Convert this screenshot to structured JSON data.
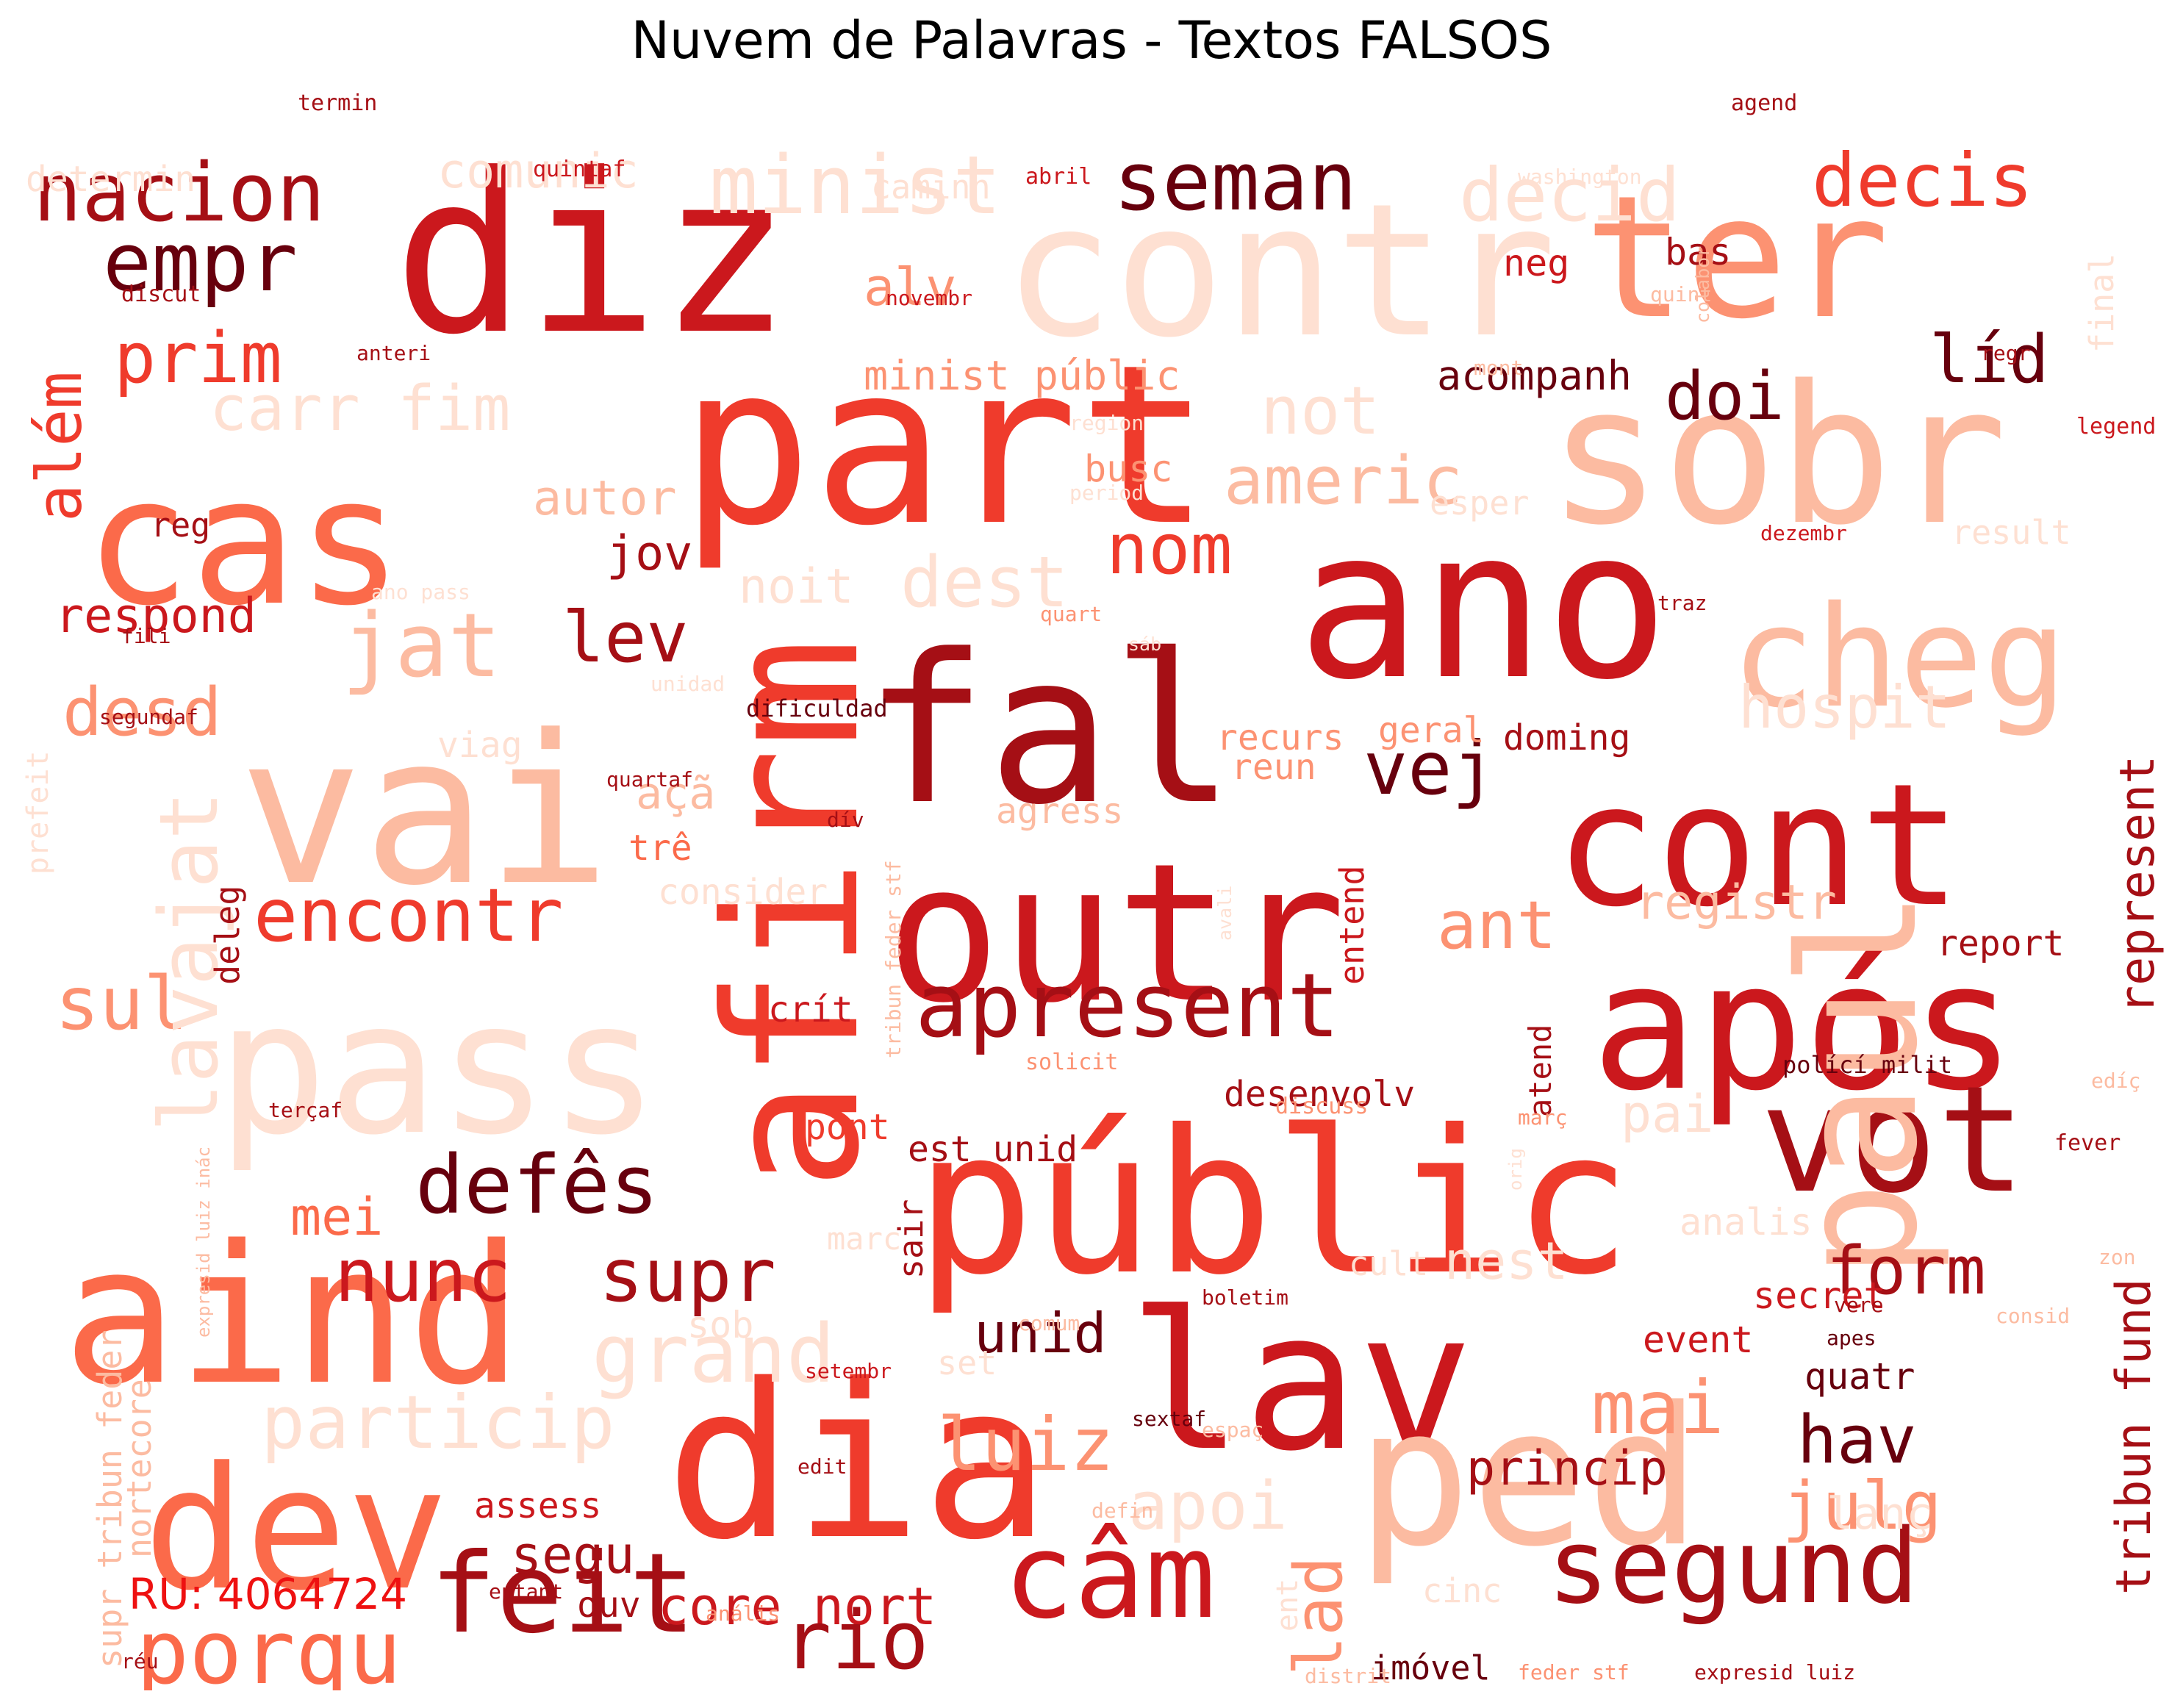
{
  "title": "Nuvem de Palavras - Textos FALSOS",
  "footer_label": "RU: 4064724",
  "colormap": "Reds",
  "palette": [
    "#fee0d2",
    "#fcbba1",
    "#fc9272",
    "#fb6a4a",
    "#ef3b2c",
    "#cb181d",
    "#a50f15",
    "#67000d"
  ],
  "words": [
    {
      "text": "diz",
      "color": "#cb181d"
    },
    {
      "text": "contr",
      "color": "#fee0d2"
    },
    {
      "text": "ter",
      "color": "#fc9272"
    },
    {
      "text": "sobr",
      "color": "#fcbba1"
    },
    {
      "text": "part",
      "color": "#ef3b2c"
    },
    {
      "text": "cas",
      "color": "#fb6a4a"
    },
    {
      "text": "ano",
      "color": "#cb181d"
    },
    {
      "text": "cheg",
      "color": "#fcbba1"
    },
    {
      "text": "fal",
      "color": "#a50f15"
    },
    {
      "text": "vai",
      "color": "#fcbba1"
    },
    {
      "text": "afirm",
      "color": "#ef3b2c"
    },
    {
      "text": "cont",
      "color": "#cb181d"
    },
    {
      "text": "outr",
      "color": "#cb181d"
    },
    {
      "text": "após",
      "color": "#cb181d"
    },
    {
      "text": "pass",
      "color": "#fee0d2"
    },
    {
      "text": "públic",
      "color": "#ef3b2c"
    },
    {
      "text": "vot",
      "color": "#a50f15"
    },
    {
      "text": "aind",
      "color": "#fb6a4a"
    },
    {
      "text": "lav",
      "color": "#cb181d"
    },
    {
      "text": "dia",
      "color": "#ef3b2c"
    },
    {
      "text": "dev",
      "color": "#fb6a4a"
    },
    {
      "text": "ped",
      "color": "#fcbba1"
    },
    {
      "text": "paul",
      "color": "#fcbba1"
    },
    {
      "text": "câm",
      "color": "#cb181d"
    },
    {
      "text": "feit",
      "color": "#a50f15"
    },
    {
      "text": "porqu",
      "color": "#fb6a4a"
    },
    {
      "text": "segund",
      "color": "#a50f15"
    },
    {
      "text": "nacion",
      "color": "#a50f15"
    },
    {
      "text": "empr",
      "color": "#67000d"
    },
    {
      "text": "minist",
      "color": "#fee0d2"
    },
    {
      "text": "seman",
      "color": "#67000d"
    },
    {
      "text": "decid",
      "color": "#fee0d2"
    },
    {
      "text": "decis",
      "color": "#ef3b2c"
    },
    {
      "text": "comunic",
      "color": "#fee0d2"
    },
    {
      "text": "determin",
      "color": "#fee0d2"
    },
    {
      "text": "prim",
      "color": "#ef3b2c"
    },
    {
      "text": "carr fim",
      "color": "#fee0d2"
    },
    {
      "text": "além",
      "color": "#ef3b2c"
    },
    {
      "text": "not",
      "color": "#fee0d2"
    },
    {
      "text": "americ",
      "color": "#fcbba1"
    },
    {
      "text": "doi",
      "color": "#67000d"
    },
    {
      "text": "líd",
      "color": "#67000d"
    },
    {
      "text": "alv",
      "color": "#fc9272"
    },
    {
      "text": "minist públic",
      "color": "#fc9272"
    },
    {
      "text": "acompanh",
      "color": "#67000d"
    },
    {
      "text": "nom",
      "color": "#ef3b2c"
    },
    {
      "text": "autor",
      "color": "#fcbba1"
    },
    {
      "text": "jov",
      "color": "#a50f15"
    },
    {
      "text": "lev",
      "color": "#a50f15"
    },
    {
      "text": "jat",
      "color": "#fcbba1"
    },
    {
      "text": "desd",
      "color": "#fc9272"
    },
    {
      "text": "respond",
      "color": "#cb181d"
    },
    {
      "text": "dest",
      "color": "#fee0d2"
    },
    {
      "text": "hospit",
      "color": "#fee0d2"
    },
    {
      "text": "vej",
      "color": "#67000d"
    },
    {
      "text": "encontr",
      "color": "#ef3b2c"
    },
    {
      "text": "ant",
      "color": "#fc9272"
    },
    {
      "text": "apresent",
      "color": "#a50f15"
    },
    {
      "text": "registr",
      "color": "#fcbba1"
    },
    {
      "text": "sul",
      "color": "#fc9272"
    },
    {
      "text": "lavajat",
      "color": "#fee0d2"
    },
    {
      "text": "defês",
      "color": "#67000d"
    },
    {
      "text": "nunc",
      "color": "#cb181d"
    },
    {
      "text": "supr",
      "color": "#a50f15"
    },
    {
      "text": "grand",
      "color": "#fee0d2"
    },
    {
      "text": "form",
      "color": "#a50f15"
    },
    {
      "text": "unid",
      "color": "#67000d"
    },
    {
      "text": "luiz",
      "color": "#fc9272"
    },
    {
      "text": "mai",
      "color": "#fc9272"
    },
    {
      "text": "hav",
      "color": "#67000d"
    },
    {
      "text": "particip",
      "color": "#fee0d2"
    },
    {
      "text": "princip",
      "color": "#a50f15"
    },
    {
      "text": "apoi",
      "color": "#fee0d2"
    },
    {
      "text": "julg",
      "color": "#fc9272"
    },
    {
      "text": "segu",
      "color": "#a50f15"
    },
    {
      "text": "core nort",
      "color": "#cb181d"
    },
    {
      "text": "rio",
      "color": "#a50f15"
    },
    {
      "text": "lad",
      "color": "#fc9272"
    },
    {
      "text": "represent",
      "color": "#a50f15"
    },
    {
      "text": "tribun fund",
      "color": "#a50f15"
    },
    {
      "text": "pont",
      "color": "#ef3b2c"
    },
    {
      "text": "est unid",
      "color": "#a50f15"
    },
    {
      "text": "desenvolv",
      "color": "#a50f15"
    },
    {
      "text": "report",
      "color": "#a50f15"
    },
    {
      "text": "recurs",
      "color": "#fc9272"
    },
    {
      "text": "geral",
      "color": "#fc9272"
    },
    {
      "text": "doming",
      "color": "#a50f15"
    },
    {
      "text": "reun",
      "color": "#fc9272"
    },
    {
      "text": "açã",
      "color": "#fcbba1"
    },
    {
      "text": "trê",
      "color": "#fb6a4a"
    },
    {
      "text": "crít",
      "color": "#cb181d"
    },
    {
      "text": "mei",
      "color": "#fb6a4a"
    },
    {
      "text": "sair",
      "color": "#a50f15"
    },
    {
      "text": "secret",
      "color": "#cb181d"
    },
    {
      "text": "event",
      "color": "#cb181d"
    },
    {
      "text": "quatr",
      "color": "#67000d"
    },
    {
      "text": "assess",
      "color": "#cb181d"
    },
    {
      "text": "ouv",
      "color": "#a50f15"
    },
    {
      "text": "imóvel",
      "color": "#67000d"
    },
    {
      "text": "bas",
      "color": "#a50f15"
    },
    {
      "text": "neg",
      "color": "#cb181d"
    },
    {
      "text": "busc",
      "color": "#fc9272"
    },
    {
      "text": "pai",
      "color": "#fee0d2"
    },
    {
      "text": "analis",
      "color": "#fee0d2"
    },
    {
      "text": "entend",
      "color": "#cb181d"
    },
    {
      "text": "deleg",
      "color": "#a50f15"
    },
    {
      "text": "atend",
      "color": "#a50f15"
    },
    {
      "text": "agress",
      "color": "#fcbba1"
    },
    {
      "text": "consider",
      "color": "#fee0d2"
    },
    {
      "text": "viag",
      "color": "#fee0d2"
    },
    {
      "text": "reg",
      "color": "#a50f15"
    },
    {
      "text": "noit",
      "color": "#fee0d2"
    },
    {
      "text": "esper",
      "color": "#fee0d2"
    },
    {
      "text": "result",
      "color": "#fee0d2"
    },
    {
      "text": "final",
      "color": "#fee0d2"
    },
    {
      "text": "nest",
      "color": "#fee0d2"
    },
    {
      "text": "cult",
      "color": "#fee0d2"
    },
    {
      "text": "lanç",
      "color": "#fee0d2"
    },
    {
      "text": "sob",
      "color": "#fee0d2"
    },
    {
      "text": "set",
      "color": "#fee0d2"
    },
    {
      "text": "marc",
      "color": "#fee0d2"
    },
    {
      "text": "cinc",
      "color": "#fee0d2"
    },
    {
      "text": "ent",
      "color": "#fee0d2"
    },
    {
      "text": "caminh",
      "color": "#fee0d2"
    },
    {
      "text": "prefeit",
      "color": "#fee0d2"
    },
    {
      "text": "nortecore",
      "color": "#fcbba1"
    },
    {
      "text": "supr tribun feder",
      "color": "#fcbba1"
    },
    {
      "text": "termin",
      "color": "#a50f15"
    },
    {
      "text": "quintaf",
      "color": "#cb181d"
    },
    {
      "text": "abril",
      "color": "#cb181d"
    },
    {
      "text": "agend",
      "color": "#a50f15"
    },
    {
      "text": "washington",
      "color": "#fee0d2"
    },
    {
      "text": "discut",
      "color": "#a50f15"
    },
    {
      "text": "novembr",
      "color": "#cb181d"
    },
    {
      "text": "anteri",
      "color": "#a50f15"
    },
    {
      "text": "quint",
      "color": "#fcbba1"
    },
    {
      "text": "colabor",
      "color": "#fcbba1"
    },
    {
      "text": "regr",
      "color": "#a50f15"
    },
    {
      "text": "mont",
      "color": "#fcbba1"
    },
    {
      "text": "legend",
      "color": "#cb181d"
    },
    {
      "text": "region",
      "color": "#fee0d2"
    },
    {
      "text": "period",
      "color": "#fee0d2"
    },
    {
      "text": "dezembr",
      "color": "#cb181d"
    },
    {
      "text": "ano pass",
      "color": "#fee0d2"
    },
    {
      "text": "quart",
      "color": "#fc9272"
    },
    {
      "text": "traz",
      "color": "#a50f15"
    },
    {
      "text": "fili",
      "color": "#a50f15"
    },
    {
      "text": "sáb",
      "color": "#fee0d2"
    },
    {
      "text": "unidad",
      "color": "#fee0d2"
    },
    {
      "text": "dificuldad",
      "color": "#67000d"
    },
    {
      "text": "segundaf",
      "color": "#a50f15"
    },
    {
      "text": "quartaf",
      "color": "#a50f15"
    },
    {
      "text": "dív",
      "color": "#a50f15"
    },
    {
      "text": "tribun feder stf",
      "color": "#fcbba1"
    },
    {
      "text": "avali",
      "color": "#fee0d2"
    },
    {
      "text": "solicit",
      "color": "#fc9272"
    },
    {
      "text": "discuss",
      "color": "#fc9272"
    },
    {
      "text": "polící milit",
      "color": "#67000d"
    },
    {
      "text": "edíç",
      "color": "#fcbba1"
    },
    {
      "text": "terçaf",
      "color": "#a50f15"
    },
    {
      "text": "expresid luiz inác",
      "color": "#fcbba1"
    },
    {
      "text": "març",
      "color": "#fc9272"
    },
    {
      "text": "fever",
      "color": "#a50f15"
    },
    {
      "text": "orig",
      "color": "#fee0d2"
    },
    {
      "text": "zon",
      "color": "#fcbba1"
    },
    {
      "text": "boletim",
      "color": "#a50f15"
    },
    {
      "text": "comum",
      "color": "#fcbba1"
    },
    {
      "text": "vere",
      "color": "#a50f15"
    },
    {
      "text": "consid",
      "color": "#fcbba1"
    },
    {
      "text": "apes",
      "color": "#67000d"
    },
    {
      "text": "setembr",
      "color": "#cb181d"
    },
    {
      "text": "sextaf",
      "color": "#67000d"
    },
    {
      "text": "espaç",
      "color": "#fcbba1"
    },
    {
      "text": "edit",
      "color": "#a50f15"
    },
    {
      "text": "defin",
      "color": "#fcbba1"
    },
    {
      "text": "entant",
      "color": "#a50f15"
    },
    {
      "text": "anális",
      "color": "#fc9272"
    },
    {
      "text": "réu",
      "color": "#a50f15"
    },
    {
      "text": "distrit",
      "color": "#fcbba1"
    },
    {
      "text": "feder stf",
      "color": "#fc9272"
    },
    {
      "text": "expresid luiz",
      "color": "#a50f15"
    }
  ]
}
